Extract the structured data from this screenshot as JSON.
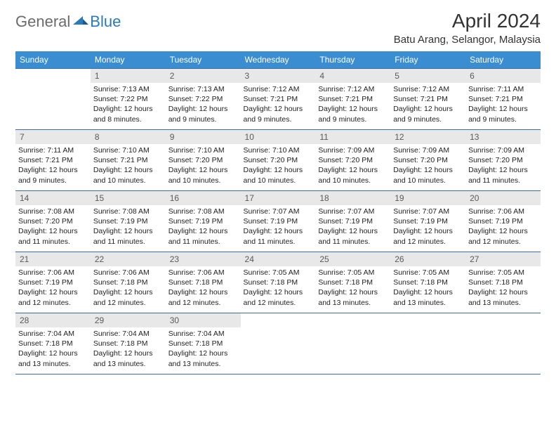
{
  "logo": {
    "general": "General",
    "blue": "Blue"
  },
  "title": "April 2024",
  "location": "Batu Arang, Selangor, Malaysia",
  "colors": {
    "header_bg": "#3b8dd1",
    "header_text": "#ffffff",
    "daynum_bg": "#e8e8e8",
    "daynum_text": "#5a5a5a",
    "row_border": "#3b6ea0",
    "logo_general": "#6b6b6b",
    "logo_blue": "#2a7ab8"
  },
  "weekdays": [
    "Sunday",
    "Monday",
    "Tuesday",
    "Wednesday",
    "Thursday",
    "Friday",
    "Saturday"
  ],
  "leading_blanks": 1,
  "days": [
    {
      "n": 1,
      "sunrise": "7:13 AM",
      "sunset": "7:22 PM",
      "daylight": "12 hours and 8 minutes."
    },
    {
      "n": 2,
      "sunrise": "7:13 AM",
      "sunset": "7:22 PM",
      "daylight": "12 hours and 9 minutes."
    },
    {
      "n": 3,
      "sunrise": "7:12 AM",
      "sunset": "7:21 PM",
      "daylight": "12 hours and 9 minutes."
    },
    {
      "n": 4,
      "sunrise": "7:12 AM",
      "sunset": "7:21 PM",
      "daylight": "12 hours and 9 minutes."
    },
    {
      "n": 5,
      "sunrise": "7:12 AM",
      "sunset": "7:21 PM",
      "daylight": "12 hours and 9 minutes."
    },
    {
      "n": 6,
      "sunrise": "7:11 AM",
      "sunset": "7:21 PM",
      "daylight": "12 hours and 9 minutes."
    },
    {
      "n": 7,
      "sunrise": "7:11 AM",
      "sunset": "7:21 PM",
      "daylight": "12 hours and 9 minutes."
    },
    {
      "n": 8,
      "sunrise": "7:10 AM",
      "sunset": "7:21 PM",
      "daylight": "12 hours and 10 minutes."
    },
    {
      "n": 9,
      "sunrise": "7:10 AM",
      "sunset": "7:20 PM",
      "daylight": "12 hours and 10 minutes."
    },
    {
      "n": 10,
      "sunrise": "7:10 AM",
      "sunset": "7:20 PM",
      "daylight": "12 hours and 10 minutes."
    },
    {
      "n": 11,
      "sunrise": "7:09 AM",
      "sunset": "7:20 PM",
      "daylight": "12 hours and 10 minutes."
    },
    {
      "n": 12,
      "sunrise": "7:09 AM",
      "sunset": "7:20 PM",
      "daylight": "12 hours and 10 minutes."
    },
    {
      "n": 13,
      "sunrise": "7:09 AM",
      "sunset": "7:20 PM",
      "daylight": "12 hours and 11 minutes."
    },
    {
      "n": 14,
      "sunrise": "7:08 AM",
      "sunset": "7:20 PM",
      "daylight": "12 hours and 11 minutes."
    },
    {
      "n": 15,
      "sunrise": "7:08 AM",
      "sunset": "7:19 PM",
      "daylight": "12 hours and 11 minutes."
    },
    {
      "n": 16,
      "sunrise": "7:08 AM",
      "sunset": "7:19 PM",
      "daylight": "12 hours and 11 minutes."
    },
    {
      "n": 17,
      "sunrise": "7:07 AM",
      "sunset": "7:19 PM",
      "daylight": "12 hours and 11 minutes."
    },
    {
      "n": 18,
      "sunrise": "7:07 AM",
      "sunset": "7:19 PM",
      "daylight": "12 hours and 11 minutes."
    },
    {
      "n": 19,
      "sunrise": "7:07 AM",
      "sunset": "7:19 PM",
      "daylight": "12 hours and 12 minutes."
    },
    {
      "n": 20,
      "sunrise": "7:06 AM",
      "sunset": "7:19 PM",
      "daylight": "12 hours and 12 minutes."
    },
    {
      "n": 21,
      "sunrise": "7:06 AM",
      "sunset": "7:19 PM",
      "daylight": "12 hours and 12 minutes."
    },
    {
      "n": 22,
      "sunrise": "7:06 AM",
      "sunset": "7:18 PM",
      "daylight": "12 hours and 12 minutes."
    },
    {
      "n": 23,
      "sunrise": "7:06 AM",
      "sunset": "7:18 PM",
      "daylight": "12 hours and 12 minutes."
    },
    {
      "n": 24,
      "sunrise": "7:05 AM",
      "sunset": "7:18 PM",
      "daylight": "12 hours and 12 minutes."
    },
    {
      "n": 25,
      "sunrise": "7:05 AM",
      "sunset": "7:18 PM",
      "daylight": "12 hours and 13 minutes."
    },
    {
      "n": 26,
      "sunrise": "7:05 AM",
      "sunset": "7:18 PM",
      "daylight": "12 hours and 13 minutes."
    },
    {
      "n": 27,
      "sunrise": "7:05 AM",
      "sunset": "7:18 PM",
      "daylight": "12 hours and 13 minutes."
    },
    {
      "n": 28,
      "sunrise": "7:04 AM",
      "sunset": "7:18 PM",
      "daylight": "12 hours and 13 minutes."
    },
    {
      "n": 29,
      "sunrise": "7:04 AM",
      "sunset": "7:18 PM",
      "daylight": "12 hours and 13 minutes."
    },
    {
      "n": 30,
      "sunrise": "7:04 AM",
      "sunset": "7:18 PM",
      "daylight": "12 hours and 13 minutes."
    }
  ],
  "labels": {
    "sunrise": "Sunrise:",
    "sunset": "Sunset:",
    "daylight": "Daylight:"
  }
}
